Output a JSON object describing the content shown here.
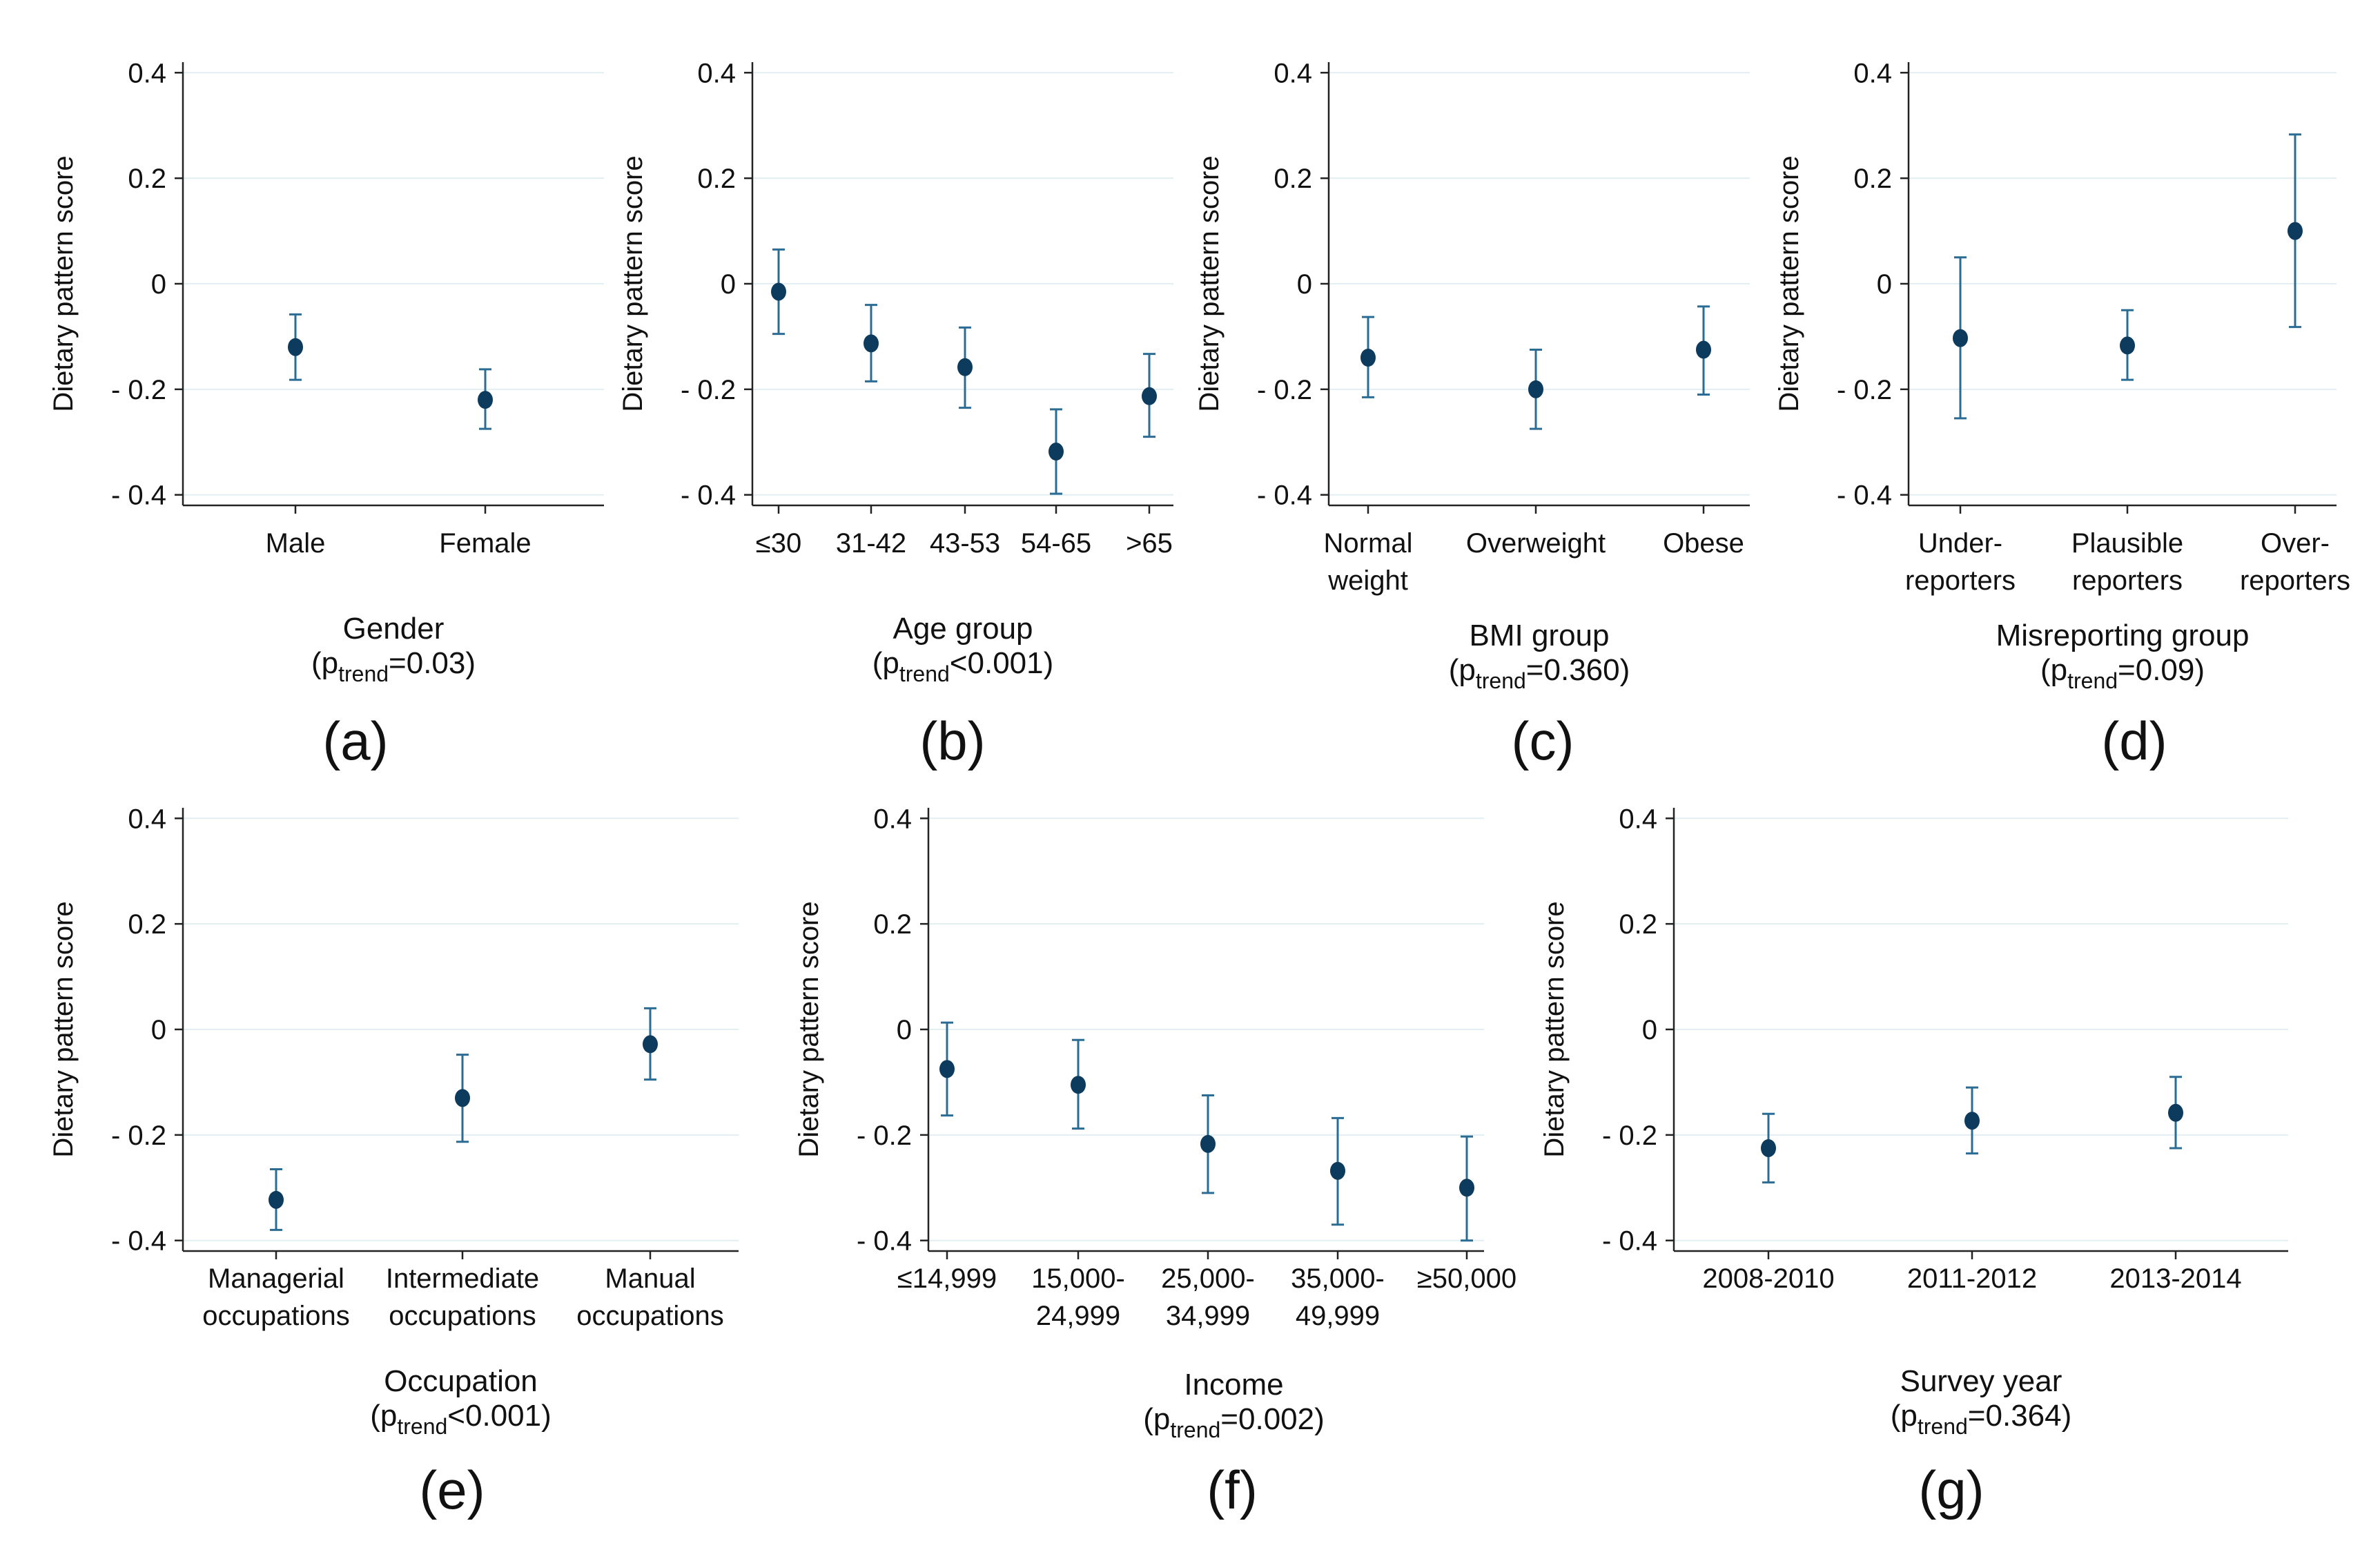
{
  "figure": {
    "background": "#ffffff",
    "marker_color": "#0d3b5e",
    "errorbar_color": "#2a6c94",
    "grid_color": "#e3eef2",
    "axis_color": "#222222"
  },
  "chart_data": [
    {
      "id": "a",
      "panel_label": "(a)",
      "type": "scatter",
      "title": "Gender",
      "trend_prefix": "(p",
      "trend_sub": "trend",
      "trend_suffix": "=0.03)",
      "ylabel": "Dietary pattern score",
      "ylim": [
        -0.42,
        0.42
      ],
      "yticks": [
        0.4,
        0.2,
        0,
        -0.2,
        -0.4
      ],
      "ytick_labels": [
        "0.4",
        "0.2",
        "0",
        "- 0.2",
        "- 0.4"
      ],
      "categories": [
        [
          "Male"
        ],
        [
          "Female"
        ]
      ],
      "values": [
        -0.12,
        -0.22
      ],
      "ci_low": [
        -0.182,
        -0.275
      ],
      "ci_high": [
        -0.058,
        -0.162
      ]
    },
    {
      "id": "b",
      "panel_label": "(b)",
      "type": "scatter",
      "title": "Age group",
      "trend_prefix": "(p",
      "trend_sub": "trend",
      "trend_suffix": "<0.001)",
      "ylabel": "Dietary pattern score",
      "ylim": [
        -0.42,
        0.42
      ],
      "yticks": [
        0.4,
        0.2,
        0,
        -0.2,
        -0.4
      ],
      "ytick_labels": [
        "0.4",
        "0.2",
        "0",
        "- 0.2",
        "- 0.4"
      ],
      "categories": [
        [
          "≤30"
        ],
        [
          "31-42"
        ],
        [
          "43-53"
        ],
        [
          "54-65"
        ],
        [
          ">65"
        ]
      ],
      "values": [
        -0.015,
        -0.113,
        -0.158,
        -0.318,
        -0.213
      ],
      "ci_low": [
        -0.095,
        -0.185,
        -0.235,
        -0.398,
        -0.29
      ],
      "ci_high": [
        0.065,
        -0.04,
        -0.083,
        -0.238,
        -0.133
      ]
    },
    {
      "id": "c",
      "panel_label": "(c)",
      "type": "scatter",
      "title": "BMI group",
      "trend_prefix": "(p",
      "trend_sub": "trend",
      "trend_suffix": "=0.360)",
      "ylabel": "Dietary pattern score",
      "ylim": [
        -0.42,
        0.42
      ],
      "yticks": [
        0.4,
        0.2,
        0,
        -0.2,
        -0.4
      ],
      "ytick_labels": [
        "0.4",
        "0.2",
        "0",
        "- 0.2",
        "- 0.4"
      ],
      "categories": [
        [
          "Normal",
          "weight"
        ],
        [
          "Overweight"
        ],
        [
          "Obese"
        ]
      ],
      "values": [
        -0.14,
        -0.2,
        -0.125
      ],
      "ci_low": [
        -0.215,
        -0.275,
        -0.21
      ],
      "ci_high": [
        -0.063,
        -0.125,
        -0.043
      ]
    },
    {
      "id": "d",
      "panel_label": "(d)",
      "type": "scatter",
      "title": "Misreporting group",
      "trend_prefix": "(p",
      "trend_sub": "trend",
      "trend_suffix": "=0.09)",
      "ylabel": "Dietary pattern score",
      "ylim": [
        -0.42,
        0.42
      ],
      "yticks": [
        0.4,
        0.2,
        0,
        -0.2,
        -0.4
      ],
      "ytick_labels": [
        "0.4",
        "0.2",
        "0",
        "- 0.2",
        "- 0.4"
      ],
      "categories": [
        [
          "Under-",
          "reporters"
        ],
        [
          "Plausible",
          "reporters"
        ],
        [
          "Over-",
          "reporters"
        ]
      ],
      "values": [
        -0.103,
        -0.117,
        0.1
      ],
      "ci_low": [
        -0.255,
        -0.182,
        -0.082
      ],
      "ci_high": [
        0.05,
        -0.05,
        0.283
      ]
    },
    {
      "id": "e",
      "panel_label": "(e)",
      "type": "scatter",
      "title": "Occupation",
      "trend_prefix": "(p",
      "trend_sub": "trend",
      "trend_suffix": "<0.001)",
      "ylabel": "Dietary pattern score",
      "ylim": [
        -0.42,
        0.42
      ],
      "yticks": [
        0.4,
        0.2,
        0,
        -0.2,
        -0.4
      ],
      "ytick_labels": [
        "0.4",
        "0.2",
        "0",
        "- 0.2",
        "- 0.4"
      ],
      "categories": [
        [
          "Managerial",
          "occupations"
        ],
        [
          "Intermediate",
          "occupations"
        ],
        [
          "Manual",
          "occupations"
        ]
      ],
      "values": [
        -0.323,
        -0.13,
        -0.028
      ],
      "ci_low": [
        -0.38,
        -0.213,
        -0.095
      ],
      "ci_high": [
        -0.265,
        -0.048,
        0.04
      ]
    },
    {
      "id": "f",
      "panel_label": "(f)",
      "type": "scatter",
      "title": "Income",
      "trend_prefix": "(p",
      "trend_sub": "trend",
      "trend_suffix": "=0.002)",
      "ylabel": "Dietary pattern score",
      "ylim": [
        -0.42,
        0.42
      ],
      "yticks": [
        0.4,
        0.2,
        0,
        -0.2,
        -0.4
      ],
      "ytick_labels": [
        "0.4",
        "0.2",
        "0",
        "- 0.2",
        "- 0.4"
      ],
      "categories": [
        [
          "≤14,999"
        ],
        [
          "15,000-",
          "24,999"
        ],
        [
          "25,000-",
          "34,999"
        ],
        [
          "35,000-",
          "49,999"
        ],
        [
          "≥50,000"
        ]
      ],
      "values": [
        -0.075,
        -0.105,
        -0.217,
        -0.268,
        -0.3
      ],
      "ci_low": [
        -0.163,
        -0.188,
        -0.31,
        -0.37,
        -0.4
      ],
      "ci_high": [
        0.013,
        -0.02,
        -0.125,
        -0.168,
        -0.203
      ]
    },
    {
      "id": "g",
      "panel_label": "(g)",
      "type": "scatter",
      "title": "Survey year",
      "trend_prefix": "(p",
      "trend_sub": "trend",
      "trend_suffix": "=0.364)",
      "ylabel": "Dietary pattern score",
      "ylim": [
        -0.42,
        0.42
      ],
      "yticks": [
        0.4,
        0.2,
        0,
        -0.2,
        -0.4
      ],
      "ytick_labels": [
        "0.4",
        "0.2",
        "0",
        "- 0.2",
        "- 0.4"
      ],
      "categories": [
        [
          "2008-2010"
        ],
        [
          "2011-2012"
        ],
        [
          "2013-2014"
        ]
      ],
      "values": [
        -0.225,
        -0.173,
        -0.158
      ],
      "ci_low": [
        -0.29,
        -0.235,
        -0.225
      ],
      "ci_high": [
        -0.16,
        -0.11,
        -0.09
      ]
    }
  ]
}
